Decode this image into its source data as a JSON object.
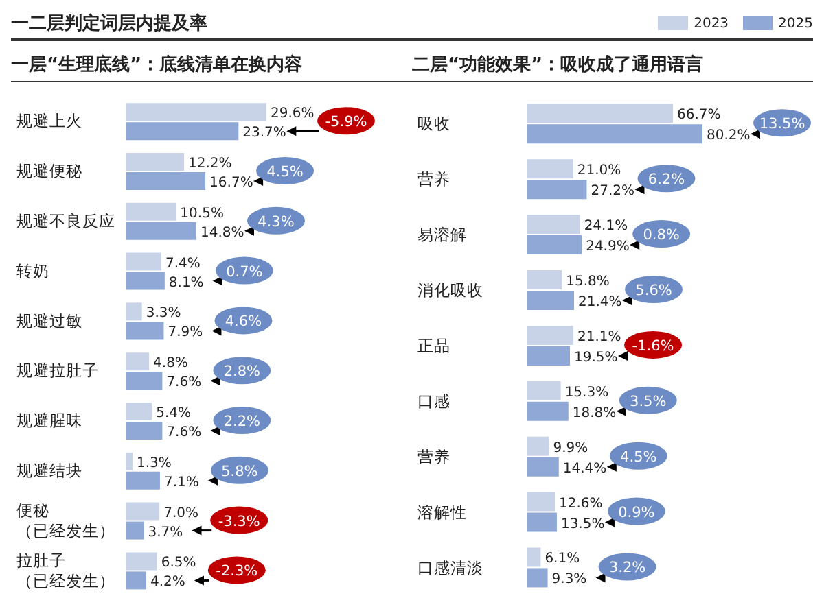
{
  "chart_data": [
    {
      "type": "bar",
      "orientation": "horizontal",
      "title": "一二层判定词层内提及率",
      "subtitle": "一层“生理底线”：底线清单在换内容",
      "tick_labels": "y",
      "categories": [
        "规避上火",
        "规避便秘",
        "规避不良反应",
        "转奶",
        "规避过敏",
        "规避拉肚子",
        "规避腥味",
        "规避结块",
        "便秘（已经发生）",
        "拉肚子（已经发生）"
      ],
      "series": [
        {
          "color": "#c9d3e8",
          "values": [
            29.6,
            12.2,
            10.5,
            7.4,
            3.3,
            4.8,
            5.4,
            1.3,
            7.0,
            6.5
          ],
          "value_labels": [
            "29.6%",
            "12.2%",
            "10.5%",
            "7.4%",
            "3.3%",
            "4.8%",
            "5.4%",
            "1.3%",
            "7.0%",
            "6.5%"
          ]
        },
        {
          "color": "#8fa8d6",
          "values": [
            23.7,
            16.7,
            14.8,
            8.1,
            7.9,
            7.6,
            7.6,
            7.1,
            3.7,
            4.2
          ],
          "value_labels": [
            "23.7%",
            "16.7%",
            "14.8%",
            "8.1%",
            "7.9%",
            "7.6%",
            "7.6%",
            "7.1%",
            "3.7%",
            "4.2%"
          ]
        }
      ],
      "annotations": [
        "-5.9%",
        "4.5%",
        "4.3%",
        "0.7%",
        "4.6%",
        "2.8%",
        "2.2%",
        "5.8%",
        "-3.3%",
        "-2.3%"
      ]
    },
    {
      "type": "bar",
      "orientation": "horizontal",
      "subtitle": "二层“功能效果”：吸收成了通用语言",
      "tick_labels": "y",
      "legend": "top right",
      "categories": [
        "吸收",
        "营养",
        "易溶解",
        "消化吸收",
        "正品",
        "口感",
        "营养",
        "溶解性",
        "口感清淡"
      ],
      "series": [
        {
          "name": "2023",
          "color": "#c9d3e8",
          "values": [
            66.7,
            21.0,
            24.1,
            15.8,
            21.1,
            15.3,
            9.9,
            12.6,
            6.1
          ],
          "value_labels": [
            "66.7%",
            "21.0%",
            "24.1%",
            "15.8%",
            "21.1%",
            "15.3%",
            "9.9%",
            "12.6%",
            "6.1%"
          ]
        },
        {
          "name": "2025",
          "color": "#8fa8d6",
          "values": [
            80.2,
            27.2,
            24.9,
            21.4,
            19.5,
            18.8,
            14.4,
            13.5,
            9.3
          ],
          "value_labels": [
            "80.2%",
            "27.2%",
            "24.9%",
            "21.4%",
            "19.5%",
            "18.8%",
            "14.4%",
            "13.5%",
            "9.3%"
          ]
        }
      ],
      "annotations": [
        "13.5%",
        "6.2%",
        "0.8%",
        "5.6%",
        "-1.6%",
        "3.5%",
        "4.5%",
        "0.9%",
        "3.2%"
      ]
    }
  ]
}
